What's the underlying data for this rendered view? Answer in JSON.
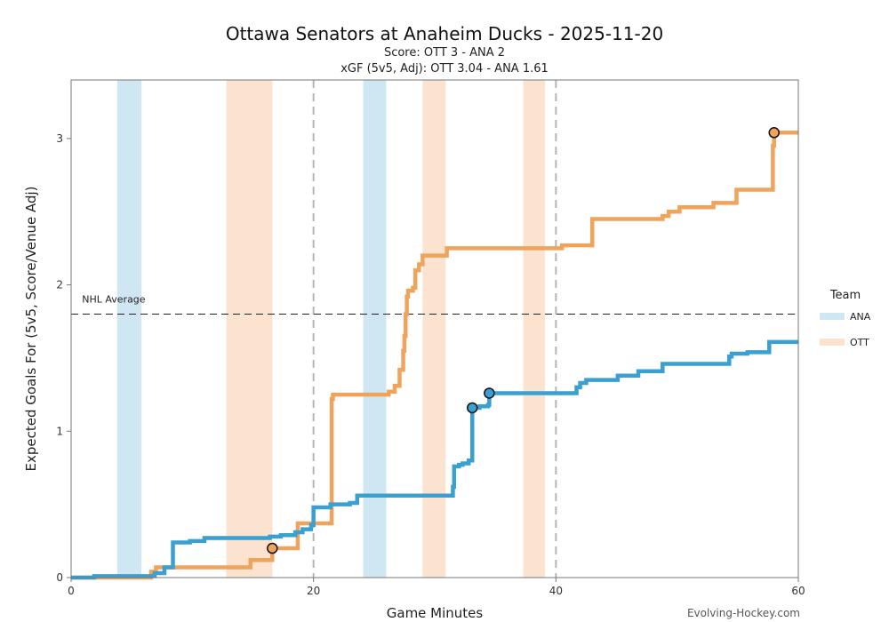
{
  "chart_data": {
    "type": "line",
    "title": "Ottawa Senators at Anaheim Ducks - 2025-11-20",
    "subtitle_score": "Score: OTT 3 - ANA 2",
    "subtitle_xgf": "xGF (5v5, Adj): OTT 3.04 - ANA 1.61",
    "xlabel": "Game Minutes",
    "ylabel": "Expected Goals For (5v5, Score/Venue Adj)",
    "xlim": [
      0,
      60
    ],
    "ylim": [
      0,
      3.4
    ],
    "xticks": [
      0,
      20,
      40,
      60
    ],
    "xtick_labels": [
      "0",
      "20",
      "40",
      "60"
    ],
    "yticks": [
      0,
      1,
      2,
      3
    ],
    "ytick_labels": [
      "0",
      "1",
      "2",
      "3"
    ],
    "period_lines": [
      20,
      40
    ],
    "reference_line": {
      "label": "NHL Average",
      "y": 1.8
    },
    "legend": {
      "title": "Team",
      "position": "right",
      "entries": [
        {
          "name": "ANA",
          "color": "#cfe7f3"
        },
        {
          "name": "OTT",
          "color": "#fbe3d0"
        }
      ]
    },
    "powerplays": [
      {
        "team": "ANA",
        "start": 3.8,
        "end": 5.8
      },
      {
        "team": "OTT",
        "start": 12.8,
        "end": 16.6
      },
      {
        "team": "ANA",
        "start": 24.1,
        "end": 26.0
      },
      {
        "team": "OTT",
        "start": 29.0,
        "end": 30.9
      },
      {
        "team": "OTT",
        "start": 37.3,
        "end": 39.1
      }
    ],
    "series": [
      {
        "name": "OTT",
        "color": "#f0a35a",
        "x": [
          0,
          6.6,
          7.0,
          14.8,
          16.6,
          18.0,
          18.7,
          21.5,
          21.6,
          26.2,
          26.7,
          27.1,
          27.4,
          27.5,
          27.6,
          27.7,
          27.8,
          28.2,
          28.4,
          28.7,
          29.0,
          31.0,
          40.5,
          43.0,
          48.8,
          49.3,
          50.2,
          53.0,
          54.9,
          57.9,
          58.0,
          60
        ],
        "values": [
          0,
          0.04,
          0.07,
          0.12,
          0.2,
          0.2,
          0.37,
          1.22,
          1.25,
          1.27,
          1.31,
          1.42,
          1.55,
          1.65,
          1.8,
          1.92,
          1.96,
          1.98,
          2.1,
          2.14,
          2.2,
          2.25,
          2.27,
          2.45,
          2.47,
          2.5,
          2.53,
          2.56,
          2.65,
          2.95,
          3.04,
          3.04
        ]
      },
      {
        "name": "ANA",
        "color": "#3a9fd1",
        "x": [
          0,
          1.9,
          6.9,
          7.7,
          8.4,
          9.8,
          11.0,
          16.4,
          17.3,
          18.5,
          19.1,
          19.8,
          20.0,
          21.4,
          23.0,
          23.6,
          27.1,
          31.5,
          31.6,
          32.0,
          32.3,
          32.8,
          33.1,
          33.7,
          34.4,
          34.5,
          41.7,
          42.0,
          42.5,
          45.1,
          46.8,
          48.8,
          54.3,
          54.5,
          55.8,
          57.6,
          60
        ],
        "values": [
          0,
          0.01,
          0.03,
          0.07,
          0.24,
          0.25,
          0.27,
          0.28,
          0.29,
          0.31,
          0.33,
          0.36,
          0.48,
          0.5,
          0.51,
          0.56,
          0.56,
          0.62,
          0.76,
          0.77,
          0.78,
          0.8,
          1.16,
          1.17,
          1.18,
          1.26,
          1.3,
          1.33,
          1.35,
          1.38,
          1.41,
          1.46,
          1.51,
          1.53,
          1.54,
          1.61,
          1.61
        ]
      }
    ],
    "goals": [
      {
        "team": "OTT",
        "x": 16.6,
        "y": 0.2
      },
      {
        "team": "ANA",
        "x": 33.1,
        "y": 1.16
      },
      {
        "team": "ANA",
        "x": 34.5,
        "y": 1.26
      },
      {
        "team": "OTT",
        "x": 58.0,
        "y": 3.04
      }
    ]
  },
  "footer": {
    "credit": "Evolving-Hockey.com"
  }
}
